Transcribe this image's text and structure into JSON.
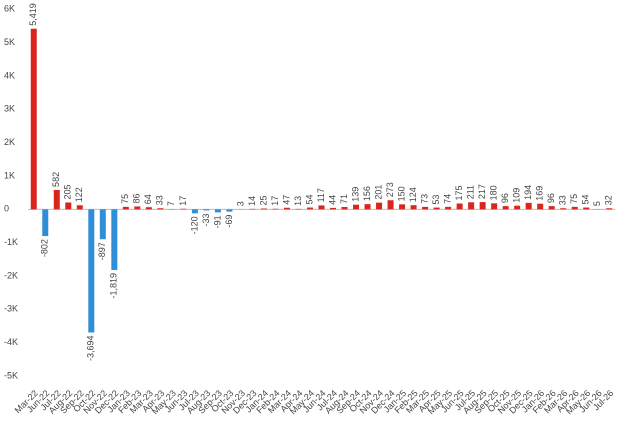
{
  "chart_data": {
    "type": "bar",
    "categories": [
      "Mar-22",
      "Jun-22",
      "Jul-22",
      "Aug-22",
      "Sep-22",
      "Oct-22",
      "Nov-22",
      "Dec-22",
      "Jan-23",
      "Feb-23",
      "Mar-23",
      "Apr-23",
      "May-23",
      "Jun-23",
      "Jul-23",
      "Aug-23",
      "Sep-23",
      "Oct-23",
      "Nov-23",
      "Dec-23",
      "Jan-24",
      "Feb-24",
      "Mar-24",
      "Apr-24",
      "May-24",
      "Jun-24",
      "Jul-24",
      "Aug-24",
      "Sep-24",
      "Oct-24",
      "Nov-24",
      "Dec-24",
      "Jan-25",
      "Feb-25",
      "Mar-25",
      "Apr-25",
      "May-25",
      "Jun-25",
      "Jul-25",
      "Aug-25",
      "Sep-25",
      "Oct-25",
      "Nov-25",
      "Dec-25",
      "Jan-26",
      "Feb-26",
      "Mar-26",
      "Apr-26",
      "May-26",
      "Jun-26",
      "Jul-26"
    ],
    "values": [
      5419,
      -802,
      582,
      205,
      122,
      -3694,
      -897,
      -1819,
      75,
      86,
      64,
      33,
      7,
      17,
      -120,
      -33,
      -91,
      -69,
      3,
      14,
      25,
      17,
      47,
      13,
      54,
      117,
      44,
      71,
      139,
      156,
      201,
      273,
      150,
      124,
      73,
      53,
      74,
      175,
      211,
      217,
      180,
      96,
      109,
      194,
      169,
      96,
      33,
      75,
      54,
      5,
      32
    ],
    "value_labels": [
      "5,419",
      "-802",
      "582",
      "205",
      "122",
      "-3,694",
      "-897",
      "-1,819",
      "75",
      "86",
      "64",
      "33",
      "7",
      "17",
      "-120",
      "-33",
      "-91",
      "-69",
      "3",
      "14",
      "25",
      "17",
      "47",
      "13",
      "54",
      "117",
      "44",
      "71",
      "139",
      "156",
      "201",
      "273",
      "150",
      "124",
      "73",
      "53",
      "74",
      "175",
      "211",
      "217",
      "180",
      "96",
      "109",
      "194",
      "169",
      "96",
      "33",
      "75",
      "54",
      "5",
      "32"
    ],
    "color_positive": "#d9261c",
    "color_negative": "#2e8fd8",
    "ylim": [
      -5300,
      6100
    ],
    "yticks": [
      {
        "value": 6000,
        "label": "6K"
      },
      {
        "value": 5000,
        "label": "5K"
      },
      {
        "value": 4000,
        "label": "4K"
      },
      {
        "value": 3000,
        "label": "3K"
      },
      {
        "value": 2000,
        "label": "2K"
      },
      {
        "value": 1000,
        "label": "1K"
      },
      0,
      {
        "value": -1000,
        "label": "-1K"
      },
      {
        "value": -2000,
        "label": "-2K"
      },
      {
        "value": -3000,
        "label": "-3K"
      },
      {
        "value": -4000,
        "label": "-4K"
      },
      {
        "value": -5000,
        "label": "-5K"
      }
    ],
    "grid": false
  }
}
